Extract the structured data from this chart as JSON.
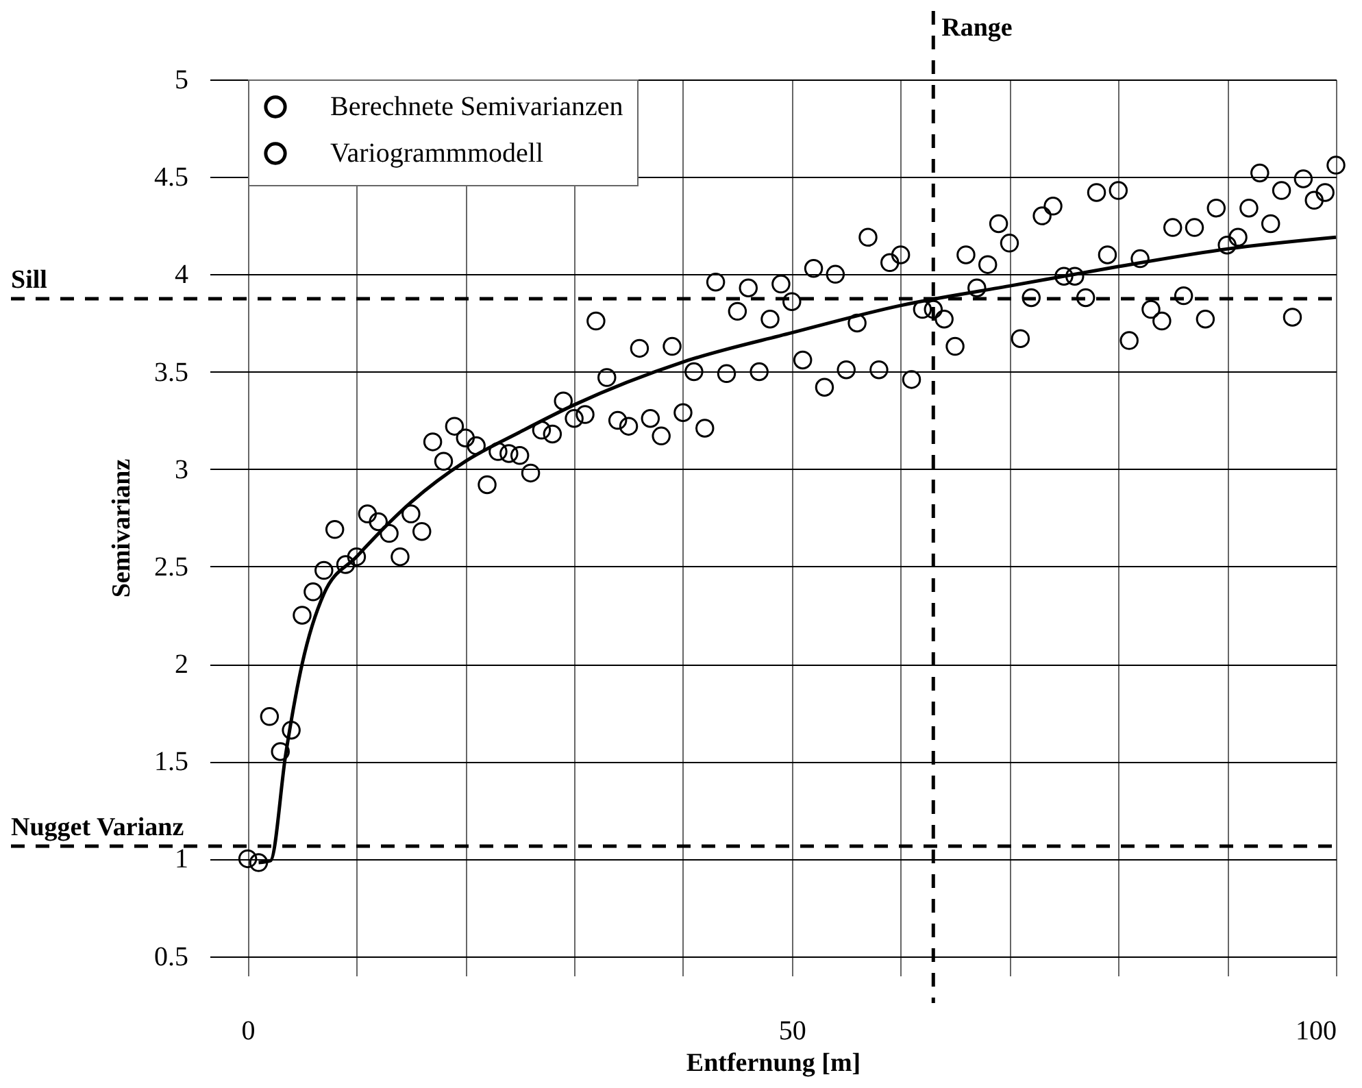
{
  "chart_data": {
    "type": "scatter",
    "xlabel": "Entfernung [m]",
    "ylabel": "Semivarianz",
    "xlim": [
      -3.5,
      100
    ],
    "xticks": [
      0,
      {
        "value": 10,
        "label": null
      },
      {
        "value": 20,
        "label": null
      },
      {
        "value": 30,
        "label": null
      },
      {
        "value": 40,
        "label": null
      },
      50,
      {
        "value": 60,
        "label": null
      },
      {
        "value": 70,
        "label": null
      },
      {
        "value": 80,
        "label": null
      },
      {
        "value": 90,
        "label": null
      },
      100
    ],
    "ylim": [
      0.4,
      5
    ],
    "yticks": [
      0.5,
      1,
      1.5,
      2,
      2.5,
      3,
      3.5,
      4,
      4.5,
      5
    ],
    "grid": true,
    "legend": "top left",
    "series": [
      {
        "name": "Berechnete Semivarianzen",
        "marker": "circle",
        "color": "#000000",
        "x": [
          0,
          1,
          2,
          3,
          4,
          5,
          6,
          7,
          8,
          9,
          10,
          11,
          12,
          13,
          14,
          15,
          16,
          17,
          18,
          19,
          20,
          21,
          22,
          23,
          24,
          25,
          26,
          27,
          28,
          29,
          30,
          31,
          32,
          33,
          34,
          35,
          36,
          37,
          38,
          39,
          40,
          41,
          42,
          43,
          44,
          45,
          46,
          47,
          48,
          49,
          50,
          51,
          52,
          53,
          54,
          55,
          56,
          57,
          58,
          59,
          60,
          61,
          62,
          63,
          64,
          65,
          66,
          67,
          68,
          69,
          70,
          71,
          72,
          73,
          74,
          75,
          76,
          77,
          78,
          79,
          80,
          81,
          82,
          83,
          84,
          85,
          86,
          87,
          88,
          89,
          90,
          91,
          92,
          93,
          94,
          95,
          96,
          97,
          98,
          99,
          100
        ],
        "values": [
          1.0,
          0.98,
          1.73,
          1.55,
          1.66,
          2.25,
          2.37,
          2.48,
          2.69,
          2.51,
          2.55,
          2.77,
          2.73,
          2.67,
          2.55,
          2.77,
          2.68,
          3.14,
          3.04,
          3.22,
          3.16,
          3.12,
          2.92,
          3.09,
          3.08,
          3.07,
          2.98,
          3.2,
          3.18,
          3.35,
          3.26,
          3.28,
          3.76,
          3.47,
          3.25,
          3.22,
          3.62,
          3.26,
          3.17,
          3.63,
          3.29,
          3.5,
          3.21,
          3.96,
          3.49,
          3.81,
          3.93,
          3.5,
          3.77,
          3.95,
          3.86,
          3.56,
          4.03,
          3.42,
          4.0,
          3.51,
          3.75,
          4.19,
          3.51,
          4.06,
          4.1,
          3.46,
          3.82,
          3.82,
          3.77,
          3.63,
          4.1,
          3.93,
          4.05,
          4.26,
          4.16,
          3.67,
          3.88,
          4.3,
          4.35,
          3.99,
          3.99,
          3.88,
          4.42,
          4.1,
          4.43,
          3.66,
          4.08,
          3.82,
          3.76,
          4.24,
          3.89,
          4.24,
          3.77,
          4.34,
          4.15,
          4.19,
          4.34,
          4.52,
          4.26,
          4.43,
          3.78,
          4.49,
          4.38,
          4.42,
          4.56
        ]
      },
      {
        "name": "Variogrammmodell",
        "type": "line",
        "marker": "none",
        "line_style": "solid",
        "color": "#000000",
        "x": [
          1,
          2.1,
          3.5,
          5,
          7,
          10,
          15,
          20,
          25,
          30,
          40,
          50,
          60,
          70,
          80,
          90,
          100
        ],
        "values": [
          0.98,
          0.99,
          1.54,
          2.0,
          2.36,
          2.55,
          2.83,
          3.04,
          3.19,
          3.33,
          3.55,
          3.7,
          3.84,
          3.94,
          4.04,
          4.13,
          4.19
        ]
      }
    ],
    "ref_lines": [
      {
        "axis": "y",
        "value": 3.875,
        "label": "Sill",
        "line_style": "dashed"
      },
      {
        "axis": "y",
        "value": 1.065,
        "label": "Nugget Varianz",
        "line_style": "dashed"
      },
      {
        "axis": "x",
        "value": 63,
        "label": "Range",
        "line_style": "dashed"
      }
    ]
  }
}
